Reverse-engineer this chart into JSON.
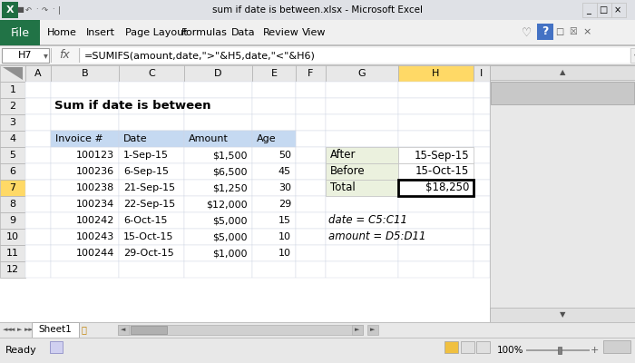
{
  "title_bar": "sum if date is between.xlsx - Microsoft Excel",
  "cell_ref": "H7",
  "formula": "=SUMIFS(amount,date,\">\"&H5,date,\"<\"&H6)",
  "heading": "Sum if date is between",
  "ribbon_tabs": [
    "File",
    "Home",
    "Insert",
    "Page Layout",
    "Formulas",
    "Data",
    "Review",
    "View"
  ],
  "col_headers": [
    "A",
    "B",
    "C",
    "D",
    "E",
    "F",
    "G",
    "H",
    "I"
  ],
  "row_headers": [
    "1",
    "2",
    "3",
    "4",
    "5",
    "6",
    "7",
    "8",
    "9",
    "10",
    "11",
    "12"
  ],
  "table_headers": [
    "Invoice #",
    "Date",
    "Amount",
    "Age"
  ],
  "table_data": [
    [
      "100123",
      "1-Sep-15",
      "$1,500",
      "50"
    ],
    [
      "100236",
      "6-Sep-15",
      "$6,500",
      "45"
    ],
    [
      "100238",
      "21-Sep-15",
      "$1,250",
      "30"
    ],
    [
      "100234",
      "22-Sep-15",
      "$12,000",
      "29"
    ],
    [
      "100242",
      "6-Oct-15",
      "$5,000",
      "15"
    ],
    [
      "100243",
      "15-Oct-15",
      "$5,000",
      "10"
    ],
    [
      "100244",
      "29-Oct-15",
      "$1,000",
      "10"
    ]
  ],
  "side_labels": [
    "After",
    "Before",
    "Total"
  ],
  "side_values": [
    "15-Sep-15",
    "15-Oct-15",
    "$18,250"
  ],
  "notes": [
    "date = C5:C11",
    "amount = D5:D11"
  ],
  "header_bg": "#c5d9f1",
  "side_label_bg": "#ebf1de",
  "selected_col_bg": "#ffd966",
  "title_bar_bg": "#e8e8e8",
  "ribbon_bg": "#f0f0f0",
  "sheet_bg": "#ffffff",
  "grid_color": "#d0d7e5",
  "file_btn_bg": "#217346",
  "file_btn_fg": "#ffffff",
  "row7_hdr_bg": "#ffd966",
  "scrollbar_bg": "#e8e8e8",
  "scrollbar_thumb": "#c0c0c0"
}
